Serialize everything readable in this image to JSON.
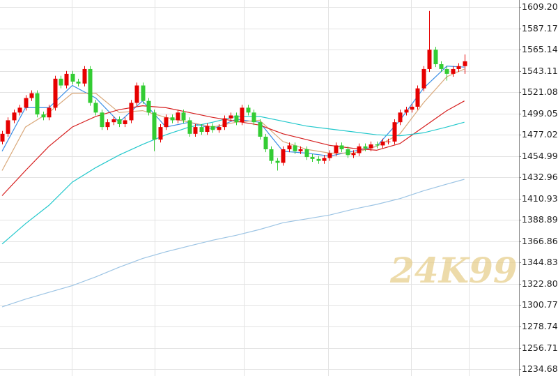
{
  "chart_data": {
    "type": "candlestick",
    "watermark": "24K99",
    "up_color": "#e60000",
    "down_color": "#33cc33",
    "grid": true,
    "xlim": [
      -0.36,
      88.33
    ],
    "xticks": [
      11.9,
      26.1,
      41.3,
      55.7,
      69.9,
      79.8
    ],
    "ylim": [
      1227.5,
      1616.4
    ],
    "yticks": [
      {
        "value": 1609.2,
        "label": "1609.20"
      },
      1587.17,
      1565.14,
      1543.11,
      1521.08,
      1499.05,
      1477.02,
      1454.99,
      1432.96,
      1410.93,
      1388.89,
      1366.86,
      1344.83,
      {
        "value": 1322.8,
        "label": "1322.80"
      },
      1300.77,
      1278.74,
      1256.71,
      1234.68
    ],
    "open": [
      1470,
      1478,
      1492,
      1500,
      1505,
      1515,
      1520,
      1498,
      1495,
      1505,
      1535,
      1528,
      1540,
      1532,
      1530,
      1545,
      1510,
      1500,
      1485,
      1490,
      1493,
      1488,
      1492,
      1510,
      1528,
      1512,
      1500,
      1472,
      1485,
      1495,
      1492,
      1500,
      1492,
      1478,
      1485,
      1480,
      1486,
      1482,
      1485,
      1494,
      1497,
      1490,
      1505,
      1500,
      1490,
      1475,
      1462,
      1450,
      1448,
      1462,
      1466,
      1460,
      1462,
      1454,
      1452,
      1450,
      1453,
      1458,
      1466,
      1462,
      1456,
      1458,
      1465,
      1463,
      1467,
      1466,
      1470,
      1470,
      1490,
      1500,
      1503,
      1506,
      1525,
      1545,
      1565,
      1550,
      1545,
      1540,
      1545,
      1548
    ],
    "high": [
      1481,
      1495,
      1503,
      1508,
      1518,
      1523,
      1523,
      1501,
      1508,
      1538,
      1538,
      1543,
      1543,
      1535,
      1548,
      1548,
      1513,
      1503,
      1493,
      1496,
      1496,
      1495,
      1513,
      1531,
      1531,
      1515,
      1503,
      1488,
      1498,
      1498,
      1503,
      1503,
      1495,
      1488,
      1488,
      1489,
      1489,
      1488,
      1497,
      1500,
      1500,
      1508,
      1508,
      1503,
      1493,
      1478,
      1465,
      1453,
      1465,
      1469,
      1469,
      1465,
      1465,
      1457,
      1455,
      1456,
      1461,
      1469,
      1469,
      1465,
      1461,
      1468,
      1468,
      1470,
      1470,
      1473,
      1473,
      1493,
      1503,
      1506,
      1509,
      1528,
      1548,
      1605,
      1568,
      1553,
      1548,
      1548,
      1551,
      1560
    ],
    "low": [
      1467,
      1475,
      1489,
      1497,
      1502,
      1512,
      1495,
      1492,
      1492,
      1502,
      1525,
      1525,
      1529,
      1527,
      1527,
      1507,
      1497,
      1482,
      1482,
      1487,
      1485,
      1485,
      1489,
      1507,
      1509,
      1497,
      1460,
      1469,
      1482,
      1489,
      1489,
      1489,
      1475,
      1475,
      1477,
      1477,
      1479,
      1479,
      1482,
      1491,
      1487,
      1487,
      1497,
      1487,
      1472,
      1459,
      1447,
      1440,
      1445,
      1459,
      1457,
      1457,
      1451,
      1449,
      1447,
      1447,
      1450,
      1455,
      1459,
      1453,
      1453,
      1455,
      1460,
      1460,
      1463,
      1463,
      1467,
      1467,
      1487,
      1497,
      1500,
      1503,
      1522,
      1542,
      1547,
      1542,
      1533,
      1537,
      1542,
      1540
    ],
    "close": [
      1478,
      1492,
      1500,
      1505,
      1515,
      1520,
      1498,
      1495,
      1505,
      1535,
      1528,
      1540,
      1532,
      1530,
      1545,
      1510,
      1500,
      1485,
      1490,
      1493,
      1488,
      1492,
      1510,
      1528,
      1512,
      1500,
      1472,
      1485,
      1495,
      1492,
      1500,
      1492,
      1478,
      1485,
      1480,
      1486,
      1482,
      1485,
      1494,
      1497,
      1490,
      1505,
      1500,
      1490,
      1475,
      1462,
      1450,
      1448,
      1462,
      1466,
      1460,
      1462,
      1454,
      1452,
      1450,
      1453,
      1458,
      1466,
      1462,
      1456,
      1458,
      1465,
      1463,
      1467,
      1466,
      1470,
      1470,
      1490,
      1500,
      1503,
      1506,
      1525,
      1545,
      1565,
      1550,
      1545,
      1540,
      1545,
      1548,
      1553
    ],
    "series": [
      {
        "color": "#3a8ee6",
        "x": [
          0,
          4,
          8,
          12,
          16,
          20,
          24,
          28,
          32,
          36,
          40,
          44,
          48,
          52,
          56,
          60,
          64,
          68,
          72,
          76,
          79
        ],
        "values": [
          1460,
          1505,
          1505,
          1528,
          1515,
          1490,
          1512,
          1485,
          1490,
          1483,
          1493,
          1490,
          1460,
          1458,
          1455,
          1460,
          1465,
          1492,
          1525,
          1548,
          1547
        ]
      },
      {
        "color": "#d9a87a",
        "x": [
          0,
          4,
          8,
          12,
          16,
          20,
          24,
          28,
          32,
          36,
          40,
          44,
          48,
          52,
          56,
          60,
          64,
          68,
          72,
          76,
          79
        ],
        "values": [
          1440,
          1485,
          1500,
          1520,
          1520,
          1500,
          1502,
          1495,
          1490,
          1485,
          1490,
          1492,
          1470,
          1462,
          1458,
          1458,
          1465,
          1478,
          1510,
          1537,
          1545
        ]
      },
      {
        "color": "#d61f1f",
        "x": [
          0,
          4,
          8,
          12,
          16,
          20,
          24,
          28,
          32,
          36,
          40,
          44,
          48,
          52,
          56,
          60,
          64,
          68,
          72,
          76,
          79
        ],
        "values": [
          1414,
          1440,
          1465,
          1485,
          1496,
          1503,
          1507,
          1505,
          1500,
          1495,
          1491,
          1487,
          1478,
          1472,
          1466,
          1463,
          1461,
          1468,
          1485,
          1502,
          1512
        ]
      },
      {
        "color": "#22c8cc",
        "x": [
          0,
          4,
          8,
          12,
          16,
          20,
          24,
          28,
          32,
          36,
          40,
          44,
          48,
          52,
          56,
          60,
          64,
          68,
          72,
          76,
          79
        ],
        "values": [
          1364,
          1385,
          1404,
          1428,
          1443,
          1456,
          1467,
          1477,
          1485,
          1490,
          1496,
          1496,
          1491,
          1486,
          1483,
          1480,
          1477,
          1476,
          1479,
          1485,
          1490
        ]
      },
      {
        "color": "#9cc4e4",
        "x": [
          0,
          4,
          8,
          12,
          16,
          20,
          24,
          28,
          32,
          36,
          40,
          44,
          48,
          52,
          56,
          60,
          64,
          68,
          72,
          76,
          79
        ],
        "values": [
          1299,
          1307,
          1314,
          1321,
          1330,
          1340,
          1349,
          1356,
          1362,
          1368,
          1373,
          1379,
          1386,
          1390,
          1394,
          1400,
          1405,
          1411,
          1419,
          1426,
          1431
        ]
      }
    ]
  }
}
